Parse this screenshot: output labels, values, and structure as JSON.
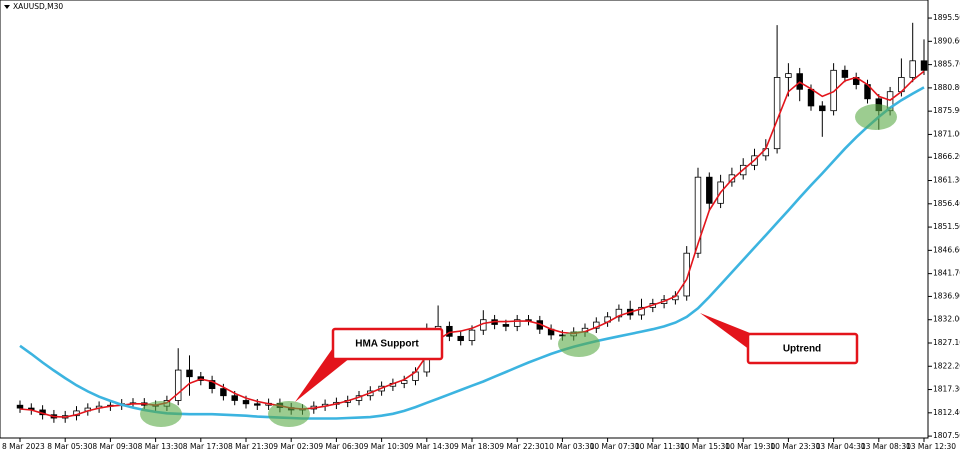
{
  "chart_data": {
    "type": "candlestick",
    "symbol_label": "XAUUSD,M30",
    "categories": [
      "8 Mar 2023",
      null,
      null,
      null,
      "8 Mar 05:30",
      null,
      null,
      null,
      "8 Mar 09:30",
      null,
      null,
      null,
      "8 Mar 13:30",
      null,
      null,
      null,
      "8 Mar 17:30",
      null,
      null,
      null,
      "8 Mar 21:30",
      null,
      null,
      null,
      "9 Mar 02:30",
      null,
      null,
      null,
      "9 Mar 06:30",
      null,
      null,
      null,
      "9 Mar 10:30",
      null,
      null,
      null,
      "9 Mar 14:30",
      null,
      null,
      null,
      "9 Mar 18:30",
      null,
      null,
      null,
      "9 Mar 22:30",
      null,
      null,
      null,
      "10 Mar 03:30",
      null,
      null,
      null,
      "10 Mar 07:30",
      null,
      null,
      null,
      "10 Mar 11:30",
      null,
      null,
      null,
      "10 Mar 15:30",
      null,
      null,
      null,
      "10 Mar 19:30",
      null,
      null,
      null,
      "10 Mar 23:30",
      null,
      null,
      null,
      "13 Mar 04:30",
      null,
      null,
      null,
      "13 Mar 08:30",
      null,
      null,
      null,
      "13 Mar 12:30"
    ],
    "open": [
      1814.0,
      1813.4,
      1813.0,
      1812.0,
      1811.3,
      1811.8,
      1812.8,
      1813.4,
      1813.8,
      1814.0,
      1814.3,
      1814.5,
      1814.0,
      1813.8,
      1815.0,
      1821.4,
      1820.0,
      1819.2,
      1817.5,
      1816.0,
      1815.0,
      1814.3,
      1814.0,
      1814.4,
      1813.5,
      1813.0,
      1813.2,
      1813.8,
      1814.2,
      1814.6,
      1815.0,
      1816.0,
      1817.0,
      1818.0,
      1818.6,
      1819.2,
      1821.0,
      1830.0,
      1830.6,
      1828.5,
      1827.6,
      1829.8,
      1832.0,
      1831.0,
      1830.6,
      1832.0,
      1831.8,
      1830.0,
      1828.8,
      1828.6,
      1829.4,
      1830.2,
      1831.5,
      1832.6,
      1834.2,
      1833.0,
      1834.6,
      1835.4,
      1836.2,
      1837.0,
      1846.0,
      1862.0,
      1856.5,
      1861.0,
      1862.5,
      1864.5,
      1866.5,
      1868.0,
      1883.0,
      1883.8,
      1880.5,
      1877.0,
      1876.0,
      1884.5,
      1883.0,
      1881.5,
      1878.5,
      1876.0,
      1880.0,
      1883.0,
      1886.5
    ],
    "high": [
      1815.0,
      1814.4,
      1814.0,
      1813.0,
      1812.8,
      1813.8,
      1814.4,
      1814.8,
      1815.0,
      1815.3,
      1815.5,
      1815.5,
      1815.0,
      1816.0,
      1826.0,
      1824.5,
      1821.0,
      1820.2,
      1818.5,
      1817.0,
      1816.0,
      1815.3,
      1815.4,
      1815.4,
      1814.5,
      1814.2,
      1814.8,
      1815.2,
      1815.6,
      1816.0,
      1817.0,
      1818.0,
      1819.0,
      1819.6,
      1820.2,
      1822.0,
      1831.2,
      1835.0,
      1831.6,
      1829.5,
      1830.8,
      1834.0,
      1833.0,
      1832.0,
      1833.0,
      1833.0,
      1832.8,
      1831.0,
      1829.8,
      1830.4,
      1831.2,
      1832.5,
      1833.6,
      1835.2,
      1836.0,
      1836.4,
      1836.4,
      1837.2,
      1838.0,
      1847.5,
      1864.0,
      1863.0,
      1862.5,
      1864.0,
      1866.0,
      1868.0,
      1870.0,
      1894.0,
      1886.0,
      1885.0,
      1881.5,
      1878.0,
      1886.0,
      1885.5,
      1884.0,
      1882.5,
      1879.5,
      1881.0,
      1887.0,
      1894.5,
      1891.0
    ],
    "low": [
      1812.4,
      1812.0,
      1811.0,
      1810.3,
      1810.3,
      1810.8,
      1811.8,
      1812.4,
      1812.8,
      1813.0,
      1813.3,
      1813.0,
      1812.8,
      1812.8,
      1814.0,
      1816.0,
      1818.2,
      1816.5,
      1815.0,
      1814.0,
      1813.3,
      1813.0,
      1813.0,
      1812.5,
      1812.0,
      1812.0,
      1812.2,
      1812.8,
      1813.2,
      1813.6,
      1814.0,
      1815.0,
      1816.0,
      1817.0,
      1817.6,
      1818.2,
      1820.0,
      1829.0,
      1827.5,
      1826.6,
      1826.6,
      1828.8,
      1830.0,
      1829.6,
      1829.6,
      1830.8,
      1829.0,
      1827.8,
      1827.6,
      1827.6,
      1828.4,
      1829.2,
      1830.5,
      1831.6,
      1832.0,
      1832.0,
      1833.6,
      1834.4,
      1835.2,
      1836.0,
      1845.0,
      1855.0,
      1855.5,
      1860.0,
      1861.5,
      1863.5,
      1865.5,
      1867.0,
      1879.0,
      1878.0,
      1876.0,
      1870.5,
      1875.0,
      1882.0,
      1880.5,
      1877.5,
      1872.0,
      1875.0,
      1879.0,
      1882.0,
      1883.5
    ],
    "close": [
      1813.4,
      1813.0,
      1812.0,
      1811.3,
      1811.8,
      1812.8,
      1813.4,
      1813.8,
      1814.0,
      1814.3,
      1814.5,
      1814.0,
      1813.8,
      1815.0,
      1821.4,
      1820.0,
      1819.2,
      1817.5,
      1816.0,
      1815.0,
      1814.3,
      1814.0,
      1814.4,
      1813.5,
      1813.0,
      1813.2,
      1813.8,
      1814.2,
      1814.6,
      1815.0,
      1816.0,
      1817.0,
      1818.0,
      1818.6,
      1819.2,
      1821.0,
      1830.0,
      1830.6,
      1828.5,
      1827.6,
      1829.8,
      1832.0,
      1831.0,
      1830.6,
      1832.0,
      1831.8,
      1830.0,
      1828.8,
      1828.6,
      1829.4,
      1830.2,
      1831.5,
      1832.6,
      1834.2,
      1833.0,
      1834.6,
      1835.4,
      1836.2,
      1837.0,
      1846.0,
      1862.0,
      1856.5,
      1861.0,
      1862.5,
      1864.5,
      1866.5,
      1868.0,
      1883.0,
      1883.8,
      1880.5,
      1877.0,
      1876.0,
      1884.5,
      1883.0,
      1881.5,
      1878.5,
      1876.0,
      1880.0,
      1883.0,
      1886.5,
      1884.5
    ],
    "bull_color": "#ffffff",
    "bear_color": "#000000",
    "lines": [
      {
        "color": "#e3141b",
        "values": [
          1813.2,
          1813.0,
          1812.3,
          1811.6,
          1811.5,
          1812.0,
          1812.8,
          1813.4,
          1813.8,
          1814.0,
          1814.3,
          1814.3,
          1814.0,
          1814.5,
          1816.5,
          1818.6,
          1819.5,
          1819.0,
          1817.8,
          1816.5,
          1815.5,
          1814.8,
          1814.3,
          1813.9,
          1813.4,
          1813.2,
          1813.4,
          1813.8,
          1814.3,
          1814.9,
          1815.7,
          1816.6,
          1817.6,
          1818.5,
          1819.4,
          1821.0,
          1824.5,
          1827.8,
          1829.3,
          1829.6,
          1830.2,
          1831.2,
          1831.6,
          1831.6,
          1831.7,
          1831.7,
          1831.1,
          1830.0,
          1829.3,
          1829.1,
          1829.5,
          1830.4,
          1831.5,
          1832.8,
          1833.6,
          1834.3,
          1835.1,
          1835.9,
          1836.9,
          1840.5,
          1848.0,
          1855.0,
          1858.8,
          1861.5,
          1863.6,
          1865.6,
          1868.0,
          1874.0,
          1880.0,
          1882.0,
          1880.6,
          1879.0,
          1880.0,
          1882.3,
          1883.0,
          1881.5,
          1879.0,
          1878.2,
          1880.0,
          1882.4,
          1884.3
        ]
      },
      {
        "color": "#3cb4e0",
        "values": [
          1826.5,
          1824.8,
          1823.0,
          1821.3,
          1819.7,
          1818.2,
          1816.9,
          1815.8,
          1814.9,
          1814.1,
          1813.5,
          1813.0,
          1812.6,
          1812.3,
          1812.2,
          1812.1,
          1812.1,
          1812.1,
          1812.0,
          1811.9,
          1811.8,
          1811.6,
          1811.5,
          1811.4,
          1811.3,
          1811.2,
          1811.2,
          1811.2,
          1811.2,
          1811.3,
          1811.4,
          1811.5,
          1811.8,
          1812.2,
          1812.8,
          1813.6,
          1814.5,
          1815.4,
          1816.3,
          1817.2,
          1818.1,
          1819.0,
          1820.0,
          1821.0,
          1822.0,
          1823.0,
          1823.9,
          1824.8,
          1825.6,
          1826.3,
          1826.9,
          1827.5,
          1828.0,
          1828.5,
          1829.0,
          1829.5,
          1830.0,
          1830.6,
          1831.4,
          1832.6,
          1834.4,
          1836.8,
          1839.4,
          1842.0,
          1844.6,
          1847.2,
          1849.8,
          1852.4,
          1855.0,
          1857.7,
          1860.3,
          1862.8,
          1865.4,
          1868.0,
          1870.4,
          1872.6,
          1874.7,
          1876.6,
          1878.2,
          1879.6,
          1880.9
        ]
      }
    ],
    "annotations": [
      {
        "text": "HMA Support"
      },
      {
        "text": "Uptrend"
      }
    ],
    "ylim": [
      1807.1,
      1899.3
    ],
    "yticks": [
      {
        "value": 1895.5,
        "label": "1895.50"
      },
      {
        "value": 1890.6,
        "label": "1890.60"
      },
      {
        "value": 1885.7,
        "label": "1885.70"
      },
      {
        "value": 1880.8,
        "label": "1880.80"
      },
      {
        "value": 1875.9,
        "label": "1875.90"
      },
      {
        "value": 1871,
        "label": "1871.00"
      },
      {
        "value": 1866.2,
        "label": "1866.20"
      },
      {
        "value": 1861.3,
        "label": "1861.30"
      },
      {
        "value": 1856.4,
        "label": "1856.40"
      },
      {
        "value": 1851.5,
        "label": "1851.50"
      },
      {
        "value": 1846.6,
        "label": "1846.60"
      },
      {
        "value": 1841.7,
        "label": "1841.70"
      },
      {
        "value": 1836.9,
        "label": "1836.90"
      },
      {
        "value": 1832,
        "label": "1832.00"
      },
      {
        "value": 1827.1,
        "label": "1827.10"
      },
      {
        "value": 1822.2,
        "label": "1822.20"
      },
      {
        "value": 1817.3,
        "label": "1817.30"
      },
      {
        "value": 1812.4,
        "label": "1812.40"
      },
      {
        "value": 1807.5,
        "label": "1807.50"
      }
    ]
  }
}
